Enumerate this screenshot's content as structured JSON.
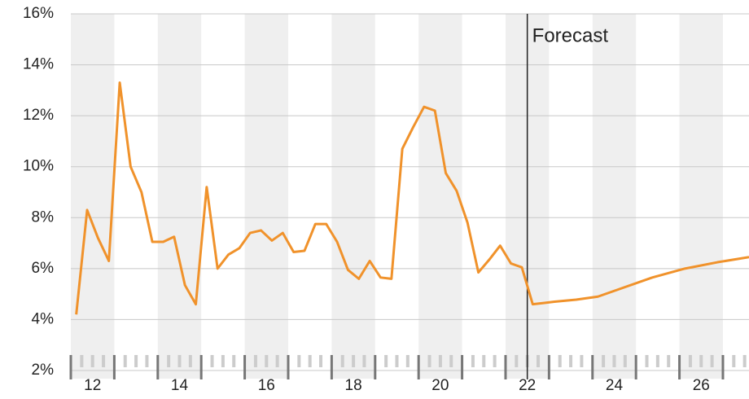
{
  "chart_data": {
    "type": "line",
    "x": [
      11.625,
      11.875,
      12.125,
      12.375,
      12.625,
      12.875,
      13.125,
      13.375,
      13.625,
      13.875,
      14.125,
      14.375,
      14.625,
      14.875,
      15.125,
      15.375,
      15.625,
      15.875,
      16.125,
      16.375,
      16.625,
      16.875,
      17.125,
      17.375,
      17.625,
      17.875,
      18.125,
      18.375,
      18.625,
      18.875,
      19.125,
      19.375,
      19.625,
      19.875,
      20.125,
      20.375,
      20.625,
      20.875,
      21.125,
      21.375,
      21.625,
      21.875,
      22.125,
      22.375,
      22.625,
      23.125,
      23.625,
      24.125,
      24.875,
      25.625,
      26.375,
      27.1
    ],
    "series": [
      {
        "color": "#f0922b",
        "values": [
          4.2,
          8.3,
          7.2,
          6.3,
          13.3,
          10.0,
          9.0,
          7.05,
          7.05,
          7.25,
          5.35,
          4.6,
          9.2,
          6.0,
          6.55,
          6.8,
          7.4,
          7.5,
          7.1,
          7.4,
          6.65,
          6.7,
          7.75,
          7.75,
          7.05,
          5.95,
          5.6,
          6.3,
          5.65,
          5.6,
          10.7,
          11.55,
          12.35,
          12.2,
          9.75,
          9.05,
          7.8,
          5.85,
          6.35,
          6.9,
          6.2,
          6.05,
          4.6,
          4.65,
          4.7,
          4.78,
          4.9,
          5.2,
          5.65,
          6.0,
          6.25,
          6.45
        ]
      }
    ],
    "xlim": [
      11.5,
      27.1
    ],
    "xticks": [
      12,
      14,
      16,
      18,
      20,
      22,
      24,
      26
    ],
    "ylim": [
      2,
      16
    ],
    "yticks": [
      {
        "value": 2,
        "label": "2%"
      },
      {
        "value": 4,
        "label": "4%"
      },
      {
        "value": 6,
        "label": "6%"
      },
      {
        "value": 8,
        "label": "8%"
      },
      {
        "value": 10,
        "label": "10%"
      },
      {
        "value": 12,
        "label": "12%"
      },
      {
        "value": 14,
        "label": "14%"
      },
      {
        "value": 16,
        "label": "16%"
      }
    ],
    "grid": true,
    "annotation": {
      "text": "Forecast",
      "x": 22
    }
  }
}
